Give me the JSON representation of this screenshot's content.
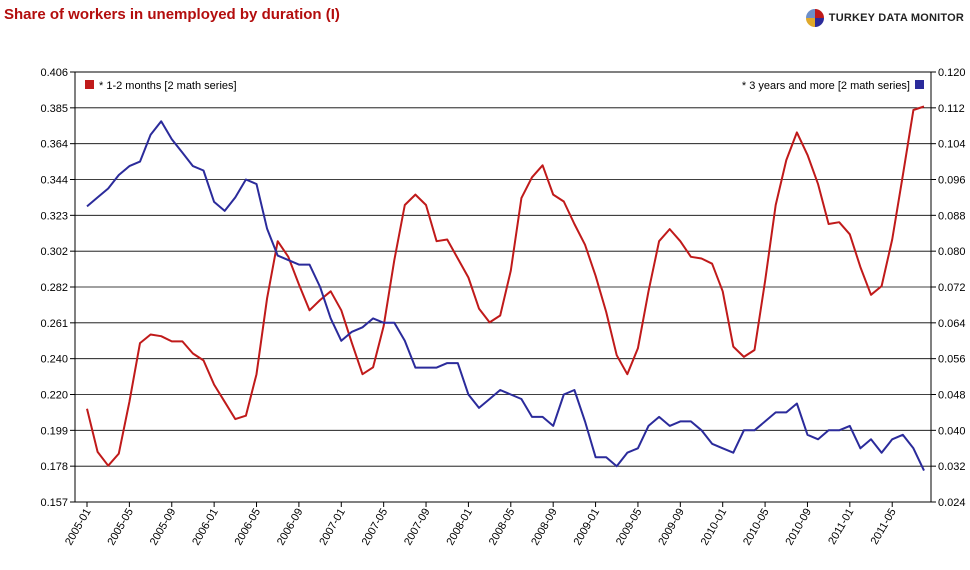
{
  "header": {
    "title": "Share of workers in unemployed by duration (I)",
    "brand": "TURKEY DATA MONITOR"
  },
  "chart_data": {
    "type": "line",
    "title": "Share of workers in unemployed by duration (I)",
    "x": [
      "2005-01",
      "2005-02",
      "2005-03",
      "2005-04",
      "2005-05",
      "2005-06",
      "2005-07",
      "2005-08",
      "2005-09",
      "2005-10",
      "2005-11",
      "2005-12",
      "2006-01",
      "2006-02",
      "2006-03",
      "2006-04",
      "2006-05",
      "2006-06",
      "2006-07",
      "2006-08",
      "2006-09",
      "2006-10",
      "2006-11",
      "2006-12",
      "2007-01",
      "2007-02",
      "2007-03",
      "2007-04",
      "2007-05",
      "2007-06",
      "2007-07",
      "2007-08",
      "2007-09",
      "2007-10",
      "2007-11",
      "2007-12",
      "2008-01",
      "2008-02",
      "2008-03",
      "2008-04",
      "2008-05",
      "2008-06",
      "2008-07",
      "2008-08",
      "2008-09",
      "2008-10",
      "2008-11",
      "2008-12",
      "2009-01",
      "2009-02",
      "2009-03",
      "2009-04",
      "2009-05",
      "2009-06",
      "2009-07",
      "2009-08",
      "2009-09",
      "2009-10",
      "2009-11",
      "2009-12",
      "2010-01",
      "2010-02",
      "2010-03",
      "2010-04",
      "2010-05",
      "2010-06",
      "2010-07",
      "2010-08",
      "2010-09",
      "2010-10",
      "2010-11",
      "2010-12",
      "2011-01",
      "2011-02",
      "2011-03",
      "2011-04",
      "2011-05",
      "2011-06",
      "2011-07",
      "2011-08"
    ],
    "x_tick_labels": [
      "2005-01",
      "2005-05",
      "2005-09",
      "2006-01",
      "2006-05",
      "2006-09",
      "2007-01",
      "2007-05",
      "2007-09",
      "2008-01",
      "2008-05",
      "2008-09",
      "2009-01",
      "2009-05",
      "2009-09",
      "2010-01",
      "2010-05",
      "2010-09",
      "2011-01",
      "2011-05"
    ],
    "y_left": {
      "ticks": [
        "0.406",
        "0.385",
        "0.364",
        "0.344",
        "0.323",
        "0.302",
        "0.282",
        "0.261",
        "0.240",
        "0.220",
        "0.199",
        "0.178",
        "0.157"
      ],
      "range": [
        0.157,
        0.406
      ]
    },
    "y_right": {
      "ticks": [
        "0.120",
        "0.112",
        "0.104",
        "0.096",
        "0.088",
        "0.080",
        "0.072",
        "0.064",
        "0.056",
        "0.048",
        "0.040",
        "0.032",
        "0.024"
      ],
      "range": [
        0.024,
        0.12
      ]
    },
    "grid": true,
    "series": [
      {
        "name": "* 1-2 months [2 math series]",
        "axis": "left",
        "color": "#c01a1a",
        "legend_position": "top-left",
        "values": [
          0.211,
          0.186,
          0.178,
          0.185,
          0.215,
          0.249,
          0.254,
          0.253,
          0.25,
          0.25,
          0.243,
          0.239,
          0.225,
          0.215,
          0.205,
          0.207,
          0.231,
          0.275,
          0.308,
          0.299,
          0.283,
          0.268,
          0.274,
          0.279,
          0.268,
          0.249,
          0.231,
          0.235,
          0.259,
          0.297,
          0.329,
          0.335,
          0.329,
          0.308,
          0.309,
          0.298,
          0.287,
          0.269,
          0.261,
          0.265,
          0.291,
          0.333,
          0.345,
          0.352,
          0.335,
          0.331,
          0.318,
          0.306,
          0.288,
          0.267,
          0.242,
          0.231,
          0.246,
          0.279,
          0.308,
          0.315,
          0.308,
          0.299,
          0.298,
          0.295,
          0.279,
          0.247,
          0.241,
          0.245,
          0.285,
          0.329,
          0.355,
          0.371,
          0.358,
          0.341,
          0.318,
          0.319,
          0.312,
          0.293,
          0.277,
          0.282,
          0.309,
          0.346,
          0.384,
          0.386
        ]
      },
      {
        "name": "* 3 years and more [2 math series]",
        "axis": "right",
        "color": "#2b2b9b",
        "legend_position": "top-right",
        "values": [
          0.09,
          0.092,
          0.094,
          0.097,
          0.099,
          0.1,
          0.106,
          0.109,
          0.105,
          0.102,
          0.099,
          0.098,
          0.091,
          0.089,
          0.092,
          0.096,
          0.095,
          0.085,
          0.079,
          0.078,
          0.077,
          0.077,
          0.072,
          0.065,
          0.06,
          0.062,
          0.063,
          0.065,
          0.064,
          0.064,
          0.06,
          0.054,
          0.054,
          0.054,
          0.055,
          0.055,
          0.048,
          0.045,
          0.047,
          0.049,
          0.048,
          0.047,
          0.043,
          0.043,
          0.041,
          0.048,
          0.049,
          0.042,
          0.034,
          0.034,
          0.032,
          0.035,
          0.036,
          0.041,
          0.043,
          0.041,
          0.042,
          0.042,
          0.04,
          0.037,
          0.036,
          0.035,
          0.04,
          0.04,
          0.042,
          0.044,
          0.044,
          0.046,
          0.039,
          0.038,
          0.04,
          0.04,
          0.041,
          0.036,
          0.038,
          0.035,
          0.038,
          0.039,
          0.036,
          0.031
        ]
      }
    ],
    "colors": {
      "grid": "#000000",
      "brand_red": "#b30d0d"
    }
  }
}
